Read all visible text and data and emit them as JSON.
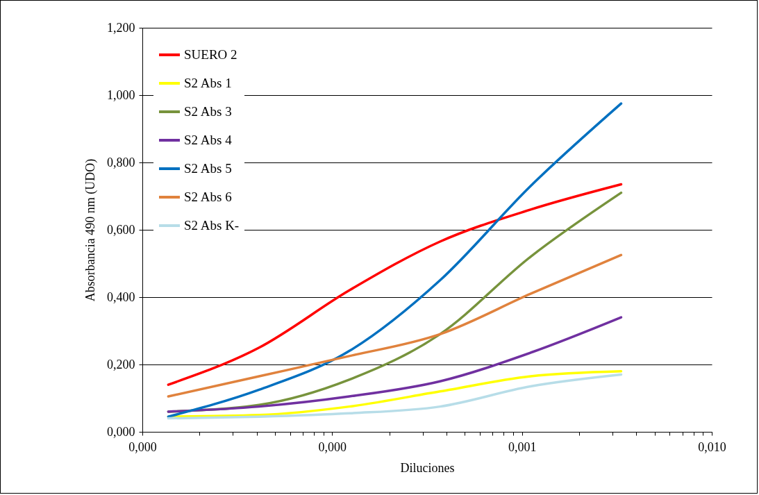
{
  "chart_data": {
    "type": "line",
    "xlabel": "Diluciones",
    "ylabel": "Absorbancia 490 nm (UDO)",
    "x": [
      1.37e-05,
      4.12e-05,
      0.000123,
      0.00037,
      0.00111,
      0.00333
    ],
    "series": [
      {
        "name": "SUERO 2",
        "color": "#ff0000",
        "values": [
          0.14,
          0.25,
          0.42,
          0.565,
          0.66,
          0.735
        ]
      },
      {
        "name": "S2 Abs 1",
        "color": "#ffff00",
        "values": [
          0.045,
          0.05,
          0.075,
          0.12,
          0.165,
          0.18
        ]
      },
      {
        "name": "S2 Abs 3",
        "color": "#77933c",
        "values": [
          0.06,
          0.08,
          0.155,
          0.29,
          0.52,
          0.71
        ]
      },
      {
        "name": "S2 Abs 4",
        "color": "#7030a0",
        "values": [
          0.06,
          0.075,
          0.105,
          0.15,
          0.235,
          0.34
        ]
      },
      {
        "name": "S2 Abs 5",
        "color": "#0070c0",
        "values": [
          0.045,
          0.125,
          0.24,
          0.45,
          0.73,
          0.975
        ]
      },
      {
        "name": "S2 Abs 6",
        "color": "#e0823d",
        "values": [
          0.105,
          0.165,
          0.225,
          0.29,
          0.41,
          0.525
        ]
      },
      {
        "name": "S2 Abs K-",
        "color": "#b7dde8",
        "values": [
          0.04,
          0.045,
          0.055,
          0.075,
          0.135,
          0.17
        ]
      }
    ],
    "log": "x",
    "xlim": [
      1e-05,
      0.01
    ],
    "xticks": [
      {
        "value": 1e-05,
        "label": "0,000"
      },
      {
        "value": 2e-05,
        "label": null
      },
      {
        "value": 3e-05,
        "label": null
      },
      {
        "value": 4e-05,
        "label": null
      },
      {
        "value": 5e-05,
        "label": null
      },
      {
        "value": 6e-05,
        "label": null
      },
      {
        "value": 7e-05,
        "label": null
      },
      {
        "value": 8e-05,
        "label": null
      },
      {
        "value": 9e-05,
        "label": null
      },
      {
        "value": 0.0001,
        "label": "0,000"
      },
      {
        "value": 0.0002,
        "label": null
      },
      {
        "value": 0.0003,
        "label": null
      },
      {
        "value": 0.0004,
        "label": null
      },
      {
        "value": 0.0005,
        "label": null
      },
      {
        "value": 0.0006,
        "label": null
      },
      {
        "value": 0.0007,
        "label": null
      },
      {
        "value": 0.0008,
        "label": null
      },
      {
        "value": 0.0009,
        "label": null
      },
      {
        "value": 0.001,
        "label": "0,001"
      },
      {
        "value": 0.002,
        "label": null
      },
      {
        "value": 0.003,
        "label": null
      },
      {
        "value": 0.004,
        "label": null
      },
      {
        "value": 0.005,
        "label": null
      },
      {
        "value": 0.006,
        "label": null
      },
      {
        "value": 0.007,
        "label": null
      },
      {
        "value": 0.008,
        "label": null
      },
      {
        "value": 0.009,
        "label": null
      },
      {
        "value": 0.01,
        "label": "0,010"
      }
    ],
    "ylim": [
      0,
      1.2
    ],
    "yticks": [
      {
        "value": 0,
        "label": "0,000"
      },
      {
        "value": 0.2,
        "label": "0,200"
      },
      {
        "value": 0.4,
        "label": "0,400"
      },
      {
        "value": 0.6,
        "label": "0,600"
      },
      {
        "value": 0.8,
        "label": "0,800"
      },
      {
        "value": 1.0,
        "label": "1,000"
      },
      {
        "value": 1.2,
        "label": "1,200"
      }
    ],
    "grid": "y",
    "legend": "top left",
    "marker": "none",
    "line_style": "solid"
  }
}
